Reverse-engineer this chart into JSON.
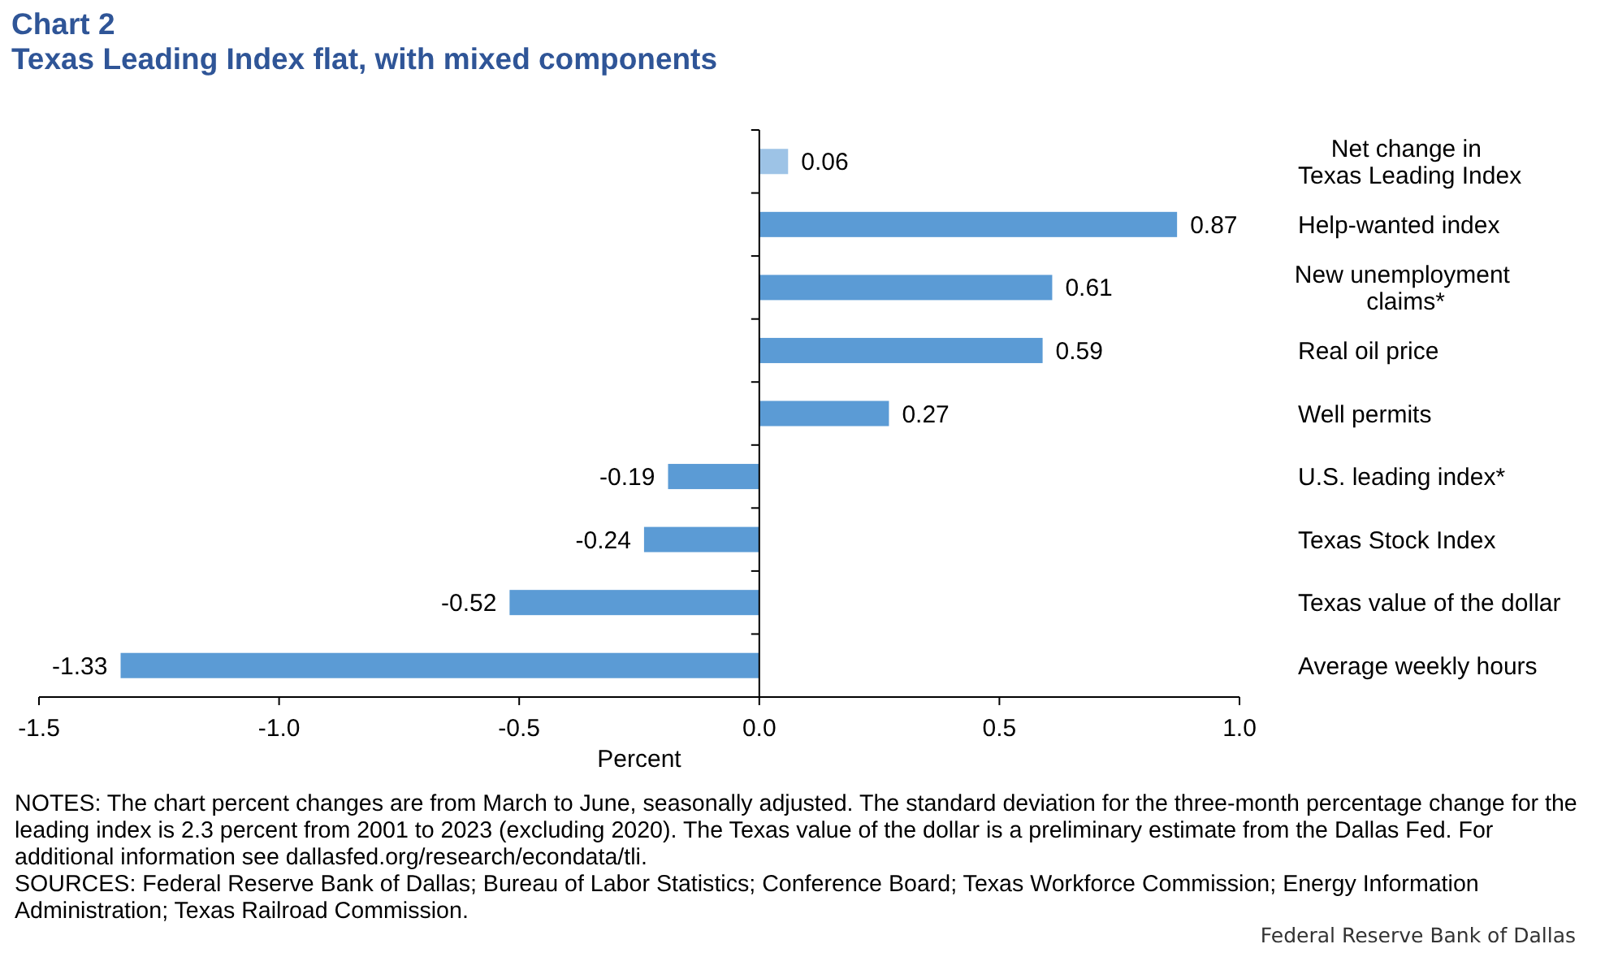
{
  "chart_data": {
    "type": "bar",
    "orientation": "horizontal",
    "title": "Chart 2",
    "subtitle": "Texas Leading Index flat, with mixed components",
    "xlabel": "Percent",
    "categories": [
      "Net change in\nTexas Leading Index",
      "Help-wanted index",
      "New unemployment\nclaims*",
      "Real oil price",
      "Well permits",
      "U.S. leading index*",
      "Texas Stock Index",
      "Texas value of the dollar",
      "Average weekly hours"
    ],
    "values": [
      0.06,
      0.87,
      0.61,
      0.59,
      0.27,
      -0.19,
      -0.24,
      -0.52,
      -1.33
    ],
    "colors": [
      "#9dc3e6",
      "#5b9bd5",
      "#5b9bd5",
      "#5b9bd5",
      "#5b9bd5",
      "#5b9bd5",
      "#5b9bd5",
      "#5b9bd5",
      "#5b9bd5"
    ],
    "xlim": [
      -1.5,
      1
    ],
    "xticks": [
      -1.5,
      {
        "value": -1,
        "label": "-1.0"
      },
      -0.5,
      {
        "value": 0,
        "label": "0.0"
      },
      0.5,
      {
        "value": 1,
        "label": "1.0"
      }
    ],
    "data_labels": true,
    "annotations": [
      "NOTES: The chart percent changes are from March to June, seasonally adjusted. The standard deviation for the three-month percentage change for the leading index is 2.3 percent from 2001 to 2023 (excluding 2020). The Texas value of the dollar is a preliminary estimate from the Dallas Fed. For additional information see dallasfed.org/research/econdata/tli.",
      "SOURCES: Federal Reserve Bank of Dallas; Bureau of Labor Statistics; Conference Board; Texas Workforce Commission; Energy Information Administration; Texas Railroad Commission.",
      "Federal Reserve Bank of Dallas"
    ]
  }
}
